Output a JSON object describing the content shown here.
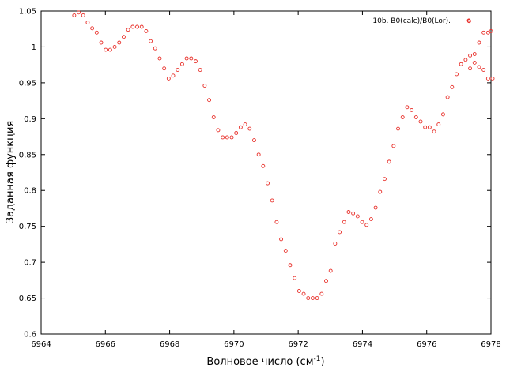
{
  "chart_data": {
    "type": "scatter",
    "title": "",
    "xlabel": "Волновое число (см",
    "xlabel_sup": "-1",
    "xlabel_tail": ")",
    "ylabel": "Заданная функция",
    "xlim": [
      6964,
      6978
    ],
    "ylim": [
      0.6,
      1.05
    ],
    "xticks": [
      "6964",
      "6966",
      "6968",
      "6970",
      "6972",
      "6974",
      "6976",
      "6978"
    ],
    "yticks": [
      "0.6",
      "0.65",
      "0.7",
      "0.75",
      "0.8",
      "0.85",
      "0.9",
      "0.95",
      "1",
      "1.05"
    ],
    "grid": false,
    "legend_position": "top-right",
    "marker_color": "#e8302a",
    "series": [
      {
        "name": "10b. B0(calc)/B0(Lor).",
        "x": [
          6965.03,
          6965.17,
          6965.31,
          6965.45,
          6965.59,
          6965.73,
          6965.87,
          6966.01,
          6966.15,
          6966.29,
          6966.43,
          6966.57,
          6966.71,
          6966.85,
          6966.99,
          6967.13,
          6967.27,
          6967.41,
          6967.55,
          6967.69,
          6967.83,
          6967.97,
          6968.11,
          6968.25,
          6968.39,
          6968.53,
          6968.67,
          6968.81,
          6968.95,
          6969.09,
          6969.23,
          6969.37,
          6969.51,
          6969.65,
          6969.79,
          6969.93,
          6970.07,
          6970.21,
          6970.35,
          6970.49,
          6970.63,
          6970.77,
          6970.91,
          6971.05,
          6971.19,
          6971.33,
          6971.47,
          6971.61,
          6971.75,
          6971.89,
          6972.03,
          6972.17,
          6972.31,
          6972.45,
          6972.59,
          6972.73,
          6972.87,
          6973.01,
          6973.15,
          6973.29,
          6973.43,
          6973.57,
          6973.71,
          6973.85,
          6973.99,
          6974.13,
          6974.27,
          6974.41,
          6974.55,
          6974.69,
          6974.83,
          6974.97,
          6975.11,
          6975.25,
          6975.39,
          6975.53,
          6975.67,
          6975.81,
          6975.95,
          6976.09,
          6976.23,
          6976.37,
          6976.51,
          6976.65,
          6976.79,
          6976.93,
          6977.07,
          6977.21,
          6977.35,
          6977.49,
          6977.63,
          6977.77,
          6977.91,
          6978.05
        ],
        "y": [
          1.044,
          1.048,
          1.044,
          1.034,
          1.026,
          1.02,
          1.006,
          0.996,
          0.996,
          1.0,
          1.006,
          1.014,
          1.024,
          1.028,
          1.028,
          1.028,
          1.022,
          1.008,
          0.998,
          0.984,
          0.97,
          0.956,
          0.96,
          0.968,
          0.976,
          0.984,
          0.984,
          0.98,
          0.968,
          0.946,
          0.926,
          0.902,
          0.884,
          0.874,
          0.874,
          0.874,
          0.88,
          0.888,
          0.892,
          0.886,
          0.87,
          0.85,
          0.834,
          0.81,
          0.786,
          0.756,
          0.732,
          0.716,
          0.696,
          0.678,
          0.66,
          0.656,
          0.65,
          0.65,
          0.65,
          0.656,
          0.674,
          0.688,
          0.726,
          0.742,
          0.756,
          0.77,
          0.768,
          0.764,
          0.756,
          0.752,
          0.76,
          0.776,
          0.798,
          0.816,
          0.84,
          0.862,
          0.886,
          0.902,
          0.916,
          0.912,
          0.902,
          0.896,
          0.888,
          0.888,
          0.882,
          0.892,
          0.906,
          0.93,
          0.944,
          0.962,
          0.976,
          0.982,
          0.988,
          0.978,
          0.972,
          0.968,
          0.956,
          0.956
        ]
      },
      {
        "name": "",
        "x": [
          6977.35,
          6977.49,
          6977.63,
          6977.77,
          6977.91,
          6978.0
        ],
        "y": [
          0.97,
          0.99,
          1.006,
          1.02,
          1.02,
          1.022
        ]
      }
    ],
    "extra_points": {
      "x": [
        6977.32
      ],
      "y": [
        1.036
      ]
    }
  }
}
